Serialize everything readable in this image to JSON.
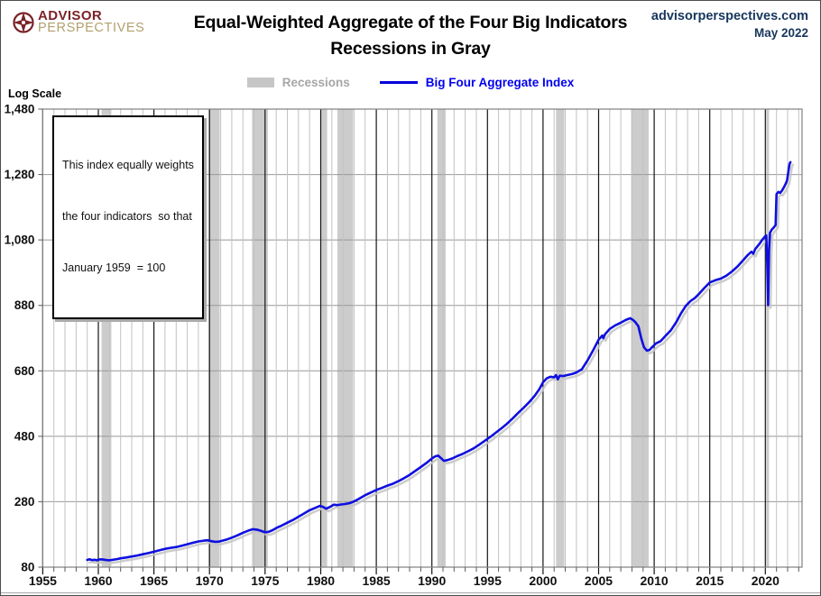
{
  "header": {
    "logo_line1": "ADVISOR",
    "logo_line2": "PERSPECTIVES",
    "site": "advisorperspectives.com",
    "date": "May 2022"
  },
  "annotation": {
    "line1": "This index equally weights",
    "line2": "the four indicators  so that",
    "line3": "January 1959  = 100"
  },
  "colors": {
    "logo_maroon": "#7a2328",
    "logo_tan": "#b3a06e",
    "site_navy": "#17365d",
    "series_blue": "#0f0fe0",
    "series_shadow": "#c4c4c4",
    "recession_band": "#cccccc",
    "legend_gray_text": "#a6a6a6",
    "grid_minor": "#c2c2c2",
    "grid_major_h": "#999999",
    "grid_5yr": "#141414",
    "frame": "#808080"
  },
  "chart_data": {
    "type": "line",
    "title": "Equal-Weighted Aggregate of the Four Big Indicators",
    "subtitle": "Recessions in Gray",
    "y_axis_note": "Log Scale",
    "x_range": [
      1955,
      2023.3
    ],
    "y_range": [
      80,
      1480
    ],
    "y_ticks": [
      80,
      280,
      480,
      680,
      880,
      1080,
      1280,
      1480
    ],
    "x_ticks": [
      1955,
      1960,
      1965,
      1970,
      1975,
      1980,
      1985,
      1990,
      1995,
      2000,
      2005,
      2010,
      2015,
      2020
    ],
    "grid": "on",
    "legend": [
      "Recessions",
      "Big Four Aggregate Index"
    ],
    "legend_position": "top-center",
    "recessions": [
      [
        1960.29,
        1961.17
      ],
      [
        1969.92,
        1970.92
      ],
      [
        1973.83,
        1975.25
      ],
      [
        1980.0,
        1980.58
      ],
      [
        1981.5,
        1982.92
      ],
      [
        1990.5,
        1991.25
      ],
      [
        2001.17,
        2001.92
      ],
      [
        2007.92,
        2009.5
      ],
      [
        2020.08,
        2020.33
      ]
    ],
    "series": [
      {
        "name": "Big Four Aggregate Index",
        "color": "#0f0fe0",
        "points": [
          [
            1959.0,
            102
          ],
          [
            1959.17,
            104
          ],
          [
            1959.33,
            103
          ],
          [
            1959.5,
            101.5
          ],
          [
            1959.67,
            102.5
          ],
          [
            1959.83,
            101
          ],
          [
            1960.0,
            103
          ],
          [
            1960.25,
            104
          ],
          [
            1960.5,
            103
          ],
          [
            1960.75,
            101.5
          ],
          [
            1961.0,
            101
          ],
          [
            1961.33,
            102.5
          ],
          [
            1961.67,
            104.5
          ],
          [
            1962.0,
            107
          ],
          [
            1962.5,
            109.5
          ],
          [
            1963.0,
            112.5
          ],
          [
            1963.5,
            115.5
          ],
          [
            1964.0,
            119.5
          ],
          [
            1964.5,
            123
          ],
          [
            1965.0,
            127
          ],
          [
            1965.5,
            131.5
          ],
          [
            1966.0,
            136
          ],
          [
            1966.5,
            139
          ],
          [
            1967.0,
            141.5
          ],
          [
            1967.5,
            145.5
          ],
          [
            1968.0,
            150
          ],
          [
            1968.5,
            154.5
          ],
          [
            1969.0,
            158.5
          ],
          [
            1969.5,
            161
          ],
          [
            1969.83,
            162
          ],
          [
            1970.17,
            159.5
          ],
          [
            1970.5,
            157.5
          ],
          [
            1970.83,
            158
          ],
          [
            1971.17,
            161
          ],
          [
            1971.58,
            165
          ],
          [
            1972.0,
            170
          ],
          [
            1972.5,
            177
          ],
          [
            1973.0,
            185
          ],
          [
            1973.5,
            192
          ],
          [
            1973.92,
            196
          ],
          [
            1974.33,
            194
          ],
          [
            1974.67,
            190.5
          ],
          [
            1975.0,
            186.5
          ],
          [
            1975.33,
            188
          ],
          [
            1975.67,
            193
          ],
          [
            1976.08,
            201
          ],
          [
            1976.5,
            207
          ],
          [
            1977.0,
            216
          ],
          [
            1977.5,
            224
          ],
          [
            1978.0,
            234
          ],
          [
            1978.5,
            244
          ],
          [
            1979.0,
            254
          ],
          [
            1979.5,
            261
          ],
          [
            1979.92,
            267
          ],
          [
            1980.17,
            265
          ],
          [
            1980.5,
            258.5
          ],
          [
            1980.83,
            264
          ],
          [
            1981.17,
            271
          ],
          [
            1981.5,
            269.5
          ],
          [
            1981.83,
            271.5
          ],
          [
            1982.17,
            273
          ],
          [
            1982.58,
            275.5
          ],
          [
            1983.0,
            281
          ],
          [
            1983.5,
            290
          ],
          [
            1984.0,
            300
          ],
          [
            1984.5,
            308
          ],
          [
            1985.0,
            316
          ],
          [
            1985.5,
            322
          ],
          [
            1986.0,
            329
          ],
          [
            1986.5,
            335
          ],
          [
            1987.0,
            343
          ],
          [
            1987.5,
            352
          ],
          [
            1988.0,
            362
          ],
          [
            1988.5,
            374
          ],
          [
            1989.0,
            386
          ],
          [
            1989.5,
            398
          ],
          [
            1990.0,
            412
          ],
          [
            1990.33,
            419
          ],
          [
            1990.58,
            421
          ],
          [
            1990.83,
            413
          ],
          [
            1991.08,
            405
          ],
          [
            1991.42,
            407.5
          ],
          [
            1991.83,
            412
          ],
          [
            1992.25,
            419
          ],
          [
            1992.75,
            426
          ],
          [
            1993.25,
            434
          ],
          [
            1993.75,
            443
          ],
          [
            1994.25,
            454
          ],
          [
            1994.75,
            466
          ],
          [
            1995.25,
            478
          ],
          [
            1995.75,
            491
          ],
          [
            1996.25,
            504
          ],
          [
            1996.75,
            518
          ],
          [
            1997.25,
            534
          ],
          [
            1997.75,
            551
          ],
          [
            1998.25,
            567
          ],
          [
            1998.75,
            584
          ],
          [
            1999.25,
            604
          ],
          [
            1999.67,
            624
          ],
          [
            2000.0,
            645
          ],
          [
            2000.33,
            657
          ],
          [
            2000.67,
            662
          ],
          [
            2001.0,
            660
          ],
          [
            2001.17,
            667
          ],
          [
            2001.33,
            654
          ],
          [
            2001.5,
            665
          ],
          [
            2001.83,
            664
          ],
          [
            2002.17,
            667
          ],
          [
            2002.58,
            670
          ],
          [
            2003.0,
            675
          ],
          [
            2003.5,
            685
          ],
          [
            2004.0,
            712
          ],
          [
            2004.5,
            742
          ],
          [
            2005.0,
            775
          ],
          [
            2005.33,
            788
          ],
          [
            2005.42,
            780
          ],
          [
            2005.58,
            792
          ],
          [
            2006.0,
            808
          ],
          [
            2006.5,
            819
          ],
          [
            2007.0,
            827
          ],
          [
            2007.42,
            835
          ],
          [
            2007.83,
            841
          ],
          [
            2008.08,
            836
          ],
          [
            2008.33,
            828
          ],
          [
            2008.58,
            816
          ],
          [
            2008.83,
            780
          ],
          [
            2009.08,
            752
          ],
          [
            2009.33,
            742
          ],
          [
            2009.58,
            744
          ],
          [
            2009.83,
            753
          ],
          [
            2010.17,
            764
          ],
          [
            2010.58,
            771
          ],
          [
            2011.0,
            786
          ],
          [
            2011.5,
            804
          ],
          [
            2012.0,
            830
          ],
          [
            2012.42,
            856
          ],
          [
            2012.83,
            878
          ],
          [
            2013.25,
            893
          ],
          [
            2013.67,
            903
          ],
          [
            2014.08,
            917
          ],
          [
            2014.5,
            933
          ],
          [
            2015.0,
            950
          ],
          [
            2015.5,
            957
          ],
          [
            2016.0,
            962
          ],
          [
            2016.5,
            971
          ],
          [
            2017.0,
            984
          ],
          [
            2017.5,
            999
          ],
          [
            2018.0,
            1018
          ],
          [
            2018.42,
            1034
          ],
          [
            2018.75,
            1044
          ],
          [
            2018.92,
            1038
          ],
          [
            2019.08,
            1052
          ],
          [
            2019.42,
            1066
          ],
          [
            2019.75,
            1082
          ],
          [
            2020.0,
            1092
          ],
          [
            2020.08,
            1094
          ],
          [
            2020.17,
            1010
          ],
          [
            2020.25,
            881
          ],
          [
            2020.33,
            1045
          ],
          [
            2020.42,
            1102
          ],
          [
            2020.58,
            1112
          ],
          [
            2020.75,
            1118
          ],
          [
            2020.92,
            1126
          ],
          [
            2021.0,
            1220
          ],
          [
            2021.17,
            1227
          ],
          [
            2021.33,
            1224
          ],
          [
            2021.5,
            1231
          ],
          [
            2021.67,
            1241
          ],
          [
            2021.83,
            1252
          ],
          [
            2021.95,
            1262
          ],
          [
            2022.05,
            1285
          ],
          [
            2022.17,
            1312
          ],
          [
            2022.25,
            1318
          ]
        ]
      }
    ]
  }
}
